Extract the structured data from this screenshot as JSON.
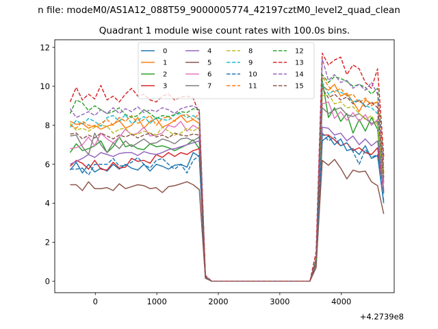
{
  "chart_data": {
    "type": "line",
    "suptitle": "n file: modeM0/AS1A12_088T59_9000005774_42197cztM0_level2_quad_clean",
    "title": "Quadrant 1 module wise count rates with 100.0s bins.",
    "xlabel": "",
    "ylabel": "",
    "x_offset_label": "+4.2739e8",
    "xlim": [
      -660,
      4860
    ],
    "ylim": [
      -0.59,
      12.39
    ],
    "x_ticks": [
      0,
      1000,
      2000,
      3000,
      4000
    ],
    "y_ticks": [
      0,
      2,
      4,
      6,
      8,
      10,
      12
    ],
    "grid": false,
    "legend": {
      "placement": "top-center",
      "columns": 4
    },
    "x": [
      -410,
      -310,
      -210,
      -110,
      -10,
      90,
      190,
      290,
      390,
      490,
      590,
      690,
      790,
      890,
      990,
      1090,
      1190,
      1290,
      1390,
      1490,
      1590,
      1690,
      1790,
      1890,
      1990,
      2090,
      2190,
      2290,
      2390,
      2490,
      2590,
      2690,
      2790,
      2890,
      2990,
      3090,
      3190,
      3290,
      3390,
      3490,
      3590,
      3690,
      3790,
      3890,
      3990,
      4090,
      4190,
      4290,
      4390,
      4490,
      4590,
      4690
    ],
    "series": [
      {
        "name": "0",
        "color": "#1f77b4",
        "dash": "solid",
        "values": [
          5.7,
          6.1,
          5.55,
          6.0,
          5.6,
          5.8,
          5.65,
          6.0,
          5.75,
          6.0,
          5.8,
          5.7,
          6.0,
          5.65,
          6.0,
          5.9,
          5.75,
          5.95,
          6.0,
          5.85,
          6.6,
          6.4,
          0.2,
          0,
          0,
          0,
          0,
          0,
          0,
          0,
          0,
          0,
          0,
          0,
          0,
          0,
          0,
          0,
          0,
          0,
          0.9,
          7.2,
          7.45,
          7.0,
          7.3,
          6.7,
          6.8,
          6.5,
          6.95,
          6.3,
          6.45,
          4.0
        ]
      },
      {
        "name": "1",
        "color": "#ff7f0e",
        "dash": "solid",
        "values": [
          8.2,
          8.05,
          8.1,
          7.85,
          8.0,
          7.8,
          7.95,
          8.05,
          8.25,
          7.85,
          8.0,
          8.4,
          7.85,
          8.2,
          8.35,
          7.9,
          8.05,
          8.25,
          8.5,
          8.15,
          8.3,
          8.1,
          0.25,
          0,
          0,
          0,
          0,
          0,
          0,
          0,
          0,
          0,
          0,
          0,
          0,
          0,
          0,
          0,
          0,
          0,
          1.0,
          10.0,
          9.8,
          10.1,
          9.5,
          9.65,
          9.2,
          8.7,
          9.3,
          9.1,
          9.2,
          5.5
        ]
      },
      {
        "name": "2",
        "color": "#2ca02c",
        "dash": "solid",
        "values": [
          6.6,
          7.05,
          6.7,
          6.8,
          6.95,
          7.2,
          6.6,
          6.9,
          7.4,
          6.9,
          7.0,
          6.8,
          6.75,
          7.05,
          6.9,
          6.95,
          6.85,
          6.7,
          6.85,
          7.0,
          7.25,
          6.8,
          0.2,
          0,
          0,
          0,
          0,
          0,
          0,
          0,
          0,
          0,
          0,
          0,
          0,
          0,
          0,
          0,
          0,
          0,
          0.95,
          10.3,
          8.4,
          8.9,
          8.2,
          8.6,
          7.6,
          8.3,
          7.7,
          8.4,
          7.8,
          4.5
        ]
      },
      {
        "name": "3",
        "color": "#d62728",
        "dash": "solid",
        "values": [
          5.9,
          6.2,
          6.05,
          5.75,
          6.2,
          5.75,
          5.7,
          6.1,
          5.8,
          5.85,
          6.3,
          6.15,
          6.2,
          6.05,
          6.5,
          6.35,
          6.6,
          6.4,
          6.6,
          6.5,
          6.7,
          6.8,
          0.2,
          0,
          0,
          0,
          0,
          0,
          0,
          0,
          0,
          0,
          0,
          0,
          0,
          0,
          0,
          0,
          0,
          0,
          1.0,
          7.5,
          7.5,
          7.25,
          6.95,
          7.1,
          6.7,
          6.85,
          6.6,
          6.5,
          6.85,
          4.6
        ]
      },
      {
        "name": "4",
        "color": "#9467bd",
        "dash": "solid",
        "values": [
          6.0,
          6.15,
          6.3,
          6.5,
          6.35,
          6.6,
          6.5,
          6.4,
          6.55,
          6.6,
          6.6,
          6.45,
          6.65,
          6.55,
          6.5,
          6.6,
          6.75,
          6.8,
          6.9,
          7.0,
          7.1,
          7.2,
          0.22,
          0,
          0,
          0,
          0,
          0,
          0,
          0,
          0,
          0,
          0,
          0,
          0,
          0,
          0,
          0,
          0,
          0,
          1.0,
          7.9,
          7.85,
          7.5,
          7.6,
          7.2,
          7.45,
          7.0,
          7.3,
          6.95,
          7.2,
          4.7
        ]
      },
      {
        "name": "5",
        "color": "#8c564b",
        "dash": "solid",
        "values": [
          4.95,
          4.95,
          4.65,
          5.1,
          4.75,
          4.75,
          4.8,
          4.65,
          5.0,
          4.75,
          4.85,
          4.95,
          4.9,
          4.75,
          4.8,
          4.55,
          4.85,
          4.9,
          5.0,
          5.1,
          4.95,
          4.7,
          0.15,
          0,
          0,
          0,
          0,
          0,
          0,
          0,
          0,
          0,
          0,
          0,
          0,
          0,
          0,
          0,
          0,
          0,
          0.7,
          6.2,
          5.95,
          6.25,
          5.8,
          5.25,
          5.7,
          5.6,
          5.65,
          5.1,
          4.9,
          3.45
        ]
      },
      {
        "name": "6",
        "color": "#e377c2",
        "dash": "solid",
        "values": [
          6.8,
          6.85,
          7.0,
          7.4,
          6.95,
          7.6,
          7.3,
          7.1,
          7.4,
          7.8,
          7.5,
          7.6,
          7.9,
          7.45,
          7.5,
          7.6,
          8.0,
          7.9,
          8.2,
          7.7,
          8.0,
          7.8,
          0.25,
          0,
          0,
          0,
          0,
          0,
          0,
          0,
          0,
          0,
          0,
          0,
          0,
          0,
          0,
          0,
          0,
          0,
          1.05,
          9.1,
          9.2,
          8.35,
          8.7,
          8.25,
          8.65,
          8.2,
          8.55,
          8.0,
          8.3,
          5.0
        ]
      },
      {
        "name": "7",
        "color": "#7f7f7f",
        "dash": "solid",
        "values": [
          7.45,
          7.5,
          6.9,
          6.5,
          7.6,
          7.0,
          6.6,
          7.1,
          6.8,
          7.2,
          6.9,
          7.1,
          7.3,
          7.05,
          7.1,
          7.3,
          7.2,
          7.05,
          7.3,
          7.35,
          7.2,
          7.4,
          0.2,
          0,
          0,
          0,
          0,
          0,
          0,
          0,
          0,
          0,
          0,
          0,
          0,
          0,
          0,
          0,
          0,
          0,
          1.0,
          8.9,
          8.6,
          8.8,
          8.9,
          8.55,
          8.45,
          8.6,
          8.35,
          8.1,
          8.2,
          5.1
        ]
      },
      {
        "name": "8",
        "color": "#bcbd22",
        "dash": "dashed",
        "values": [
          8.1,
          7.75,
          7.85,
          7.7,
          7.9,
          8.0,
          7.95,
          7.6,
          7.8,
          7.85,
          7.5,
          7.55,
          7.7,
          7.6,
          7.5,
          7.9,
          7.7,
          7.5,
          7.6,
          7.85,
          7.7,
          7.9,
          0.22,
          0,
          0,
          0,
          0,
          0,
          0,
          0,
          0,
          0,
          0,
          0,
          0,
          0,
          0,
          0,
          0,
          0,
          1.0,
          9.5,
          9.6,
          9.1,
          9.2,
          8.9,
          8.95,
          8.6,
          8.3,
          8.5,
          8.0,
          5.2
        ]
      },
      {
        "name": "9",
        "color": "#17becf",
        "dash": "dashed",
        "values": [
          7.9,
          8.25,
          8.05,
          8.35,
          8.2,
          7.95,
          8.4,
          8.5,
          8.2,
          8.55,
          8.1,
          8.25,
          8.45,
          8.1,
          8.4,
          8.3,
          8.25,
          8.55,
          8.6,
          8.4,
          8.5,
          8.3,
          0.24,
          0,
          0,
          0,
          0,
          0,
          0,
          0,
          0,
          0,
          0,
          0,
          0,
          0,
          0,
          0,
          0,
          0,
          1.0,
          10.2,
          9.6,
          9.8,
          9.7,
          9.55,
          9.2,
          9.3,
          9.0,
          8.9,
          8.6,
          5.4
        ]
      },
      {
        "name": "10",
        "color": "#1f77b4",
        "dash": "dashed",
        "values": [
          5.75,
          5.75,
          5.8,
          5.45,
          6.0,
          6.0,
          6.0,
          6.3,
          5.9,
          5.95,
          6.1,
          6.35,
          6.0,
          5.8,
          6.2,
          6.3,
          6.0,
          5.75,
          6.0,
          5.55,
          6.2,
          6.45,
          0.18,
          0,
          0,
          0,
          0,
          0,
          0,
          0,
          0,
          0,
          0,
          0,
          0,
          0,
          0,
          0,
          0,
          0,
          0.9,
          7.6,
          7.2,
          7.4,
          6.95,
          7.1,
          6.65,
          6.0,
          6.75,
          6.35,
          6.5,
          4.1
        ]
      },
      {
        "name": "11",
        "color": "#ff7f0e",
        "dash": "dashed",
        "values": [
          8.0,
          7.85,
          8.2,
          8.0,
          7.95,
          8.1,
          8.3,
          8.0,
          8.4,
          8.2,
          8.5,
          8.1,
          8.3,
          8.5,
          8.0,
          8.35,
          8.45,
          8.2,
          8.5,
          8.55,
          8.3,
          8.6,
          0.25,
          0,
          0,
          0,
          0,
          0,
          0,
          0,
          0,
          0,
          0,
          0,
          0,
          0,
          0,
          0,
          0,
          0,
          1.0,
          10.5,
          10.0,
          9.7,
          9.9,
          9.5,
          9.6,
          9.15,
          9.4,
          9.0,
          9.2,
          5.6
        ]
      },
      {
        "name": "12",
        "color": "#2ca02c",
        "dash": "dashed",
        "values": [
          8.6,
          9.3,
          9.15,
          8.75,
          9.0,
          8.8,
          8.6,
          8.7,
          8.9,
          8.55,
          8.4,
          8.5,
          8.8,
          8.6,
          8.35,
          8.5,
          8.45,
          8.55,
          8.7,
          8.65,
          8.85,
          8.8,
          0.25,
          0,
          0,
          0,
          0,
          0,
          0,
          0,
          0,
          0,
          0,
          0,
          0,
          0,
          0,
          0,
          0,
          0,
          1.1,
          10.6,
          10.2,
          10.5,
          10.4,
          10.25,
          10.0,
          10.1,
          9.95,
          9.6,
          9.9,
          6.1
        ]
      },
      {
        "name": "13",
        "color": "#d62728",
        "dash": "dashed",
        "values": [
          9.2,
          9.95,
          9.3,
          9.6,
          9.35,
          10.05,
          9.3,
          9.5,
          9.2,
          9.6,
          9.9,
          9.5,
          9.6,
          9.3,
          9.2,
          9.5,
          9.6,
          9.3,
          9.45,
          9.5,
          9.4,
          8.6,
          0.3,
          0,
          0,
          0,
          0,
          0,
          0,
          0,
          0,
          0,
          0,
          0,
          0,
          0,
          0,
          0,
          0,
          0,
          1.5,
          11.7,
          11.1,
          11.35,
          11.5,
          10.6,
          11.1,
          10.9,
          10.2,
          9.9,
          10.9,
          6.4
        ]
      },
      {
        "name": "14",
        "color": "#9467bd",
        "dash": "dashed",
        "values": [
          8.85,
          8.4,
          8.55,
          8.7,
          8.5,
          8.8,
          8.6,
          8.9,
          8.6,
          8.85,
          8.7,
          8.95,
          8.65,
          8.8,
          8.7,
          8.9,
          8.8,
          8.6,
          8.85,
          8.95,
          9.0,
          8.8,
          0.25,
          0,
          0,
          0,
          0,
          0,
          0,
          0,
          0,
          0,
          0,
          0,
          0,
          0,
          0,
          0,
          0,
          0,
          1.2,
          11.4,
          10.3,
          10.6,
          10.2,
          10.3,
          9.9,
          10.1,
          9.8,
          10.2,
          9.6,
          5.8
        ]
      },
      {
        "name": "15",
        "color": "#8c564b",
        "dash": "dashed",
        "values": [
          7.55,
          7.6,
          7.3,
          7.5,
          7.35,
          7.6,
          7.45,
          7.3,
          7.5,
          7.4,
          7.55,
          7.35,
          7.5,
          7.6,
          7.4,
          7.5,
          7.35,
          7.6,
          7.5,
          7.45,
          7.55,
          7.5,
          0.2,
          0,
          0,
          0,
          0,
          0,
          0,
          0,
          0,
          0,
          0,
          0,
          0,
          0,
          0,
          0,
          0,
          0,
          1.0,
          9.9,
          9.4,
          9.6,
          9.3,
          9.45,
          9.1,
          9.3,
          8.95,
          9.2,
          8.9,
          5.3
        ]
      }
    ]
  }
}
